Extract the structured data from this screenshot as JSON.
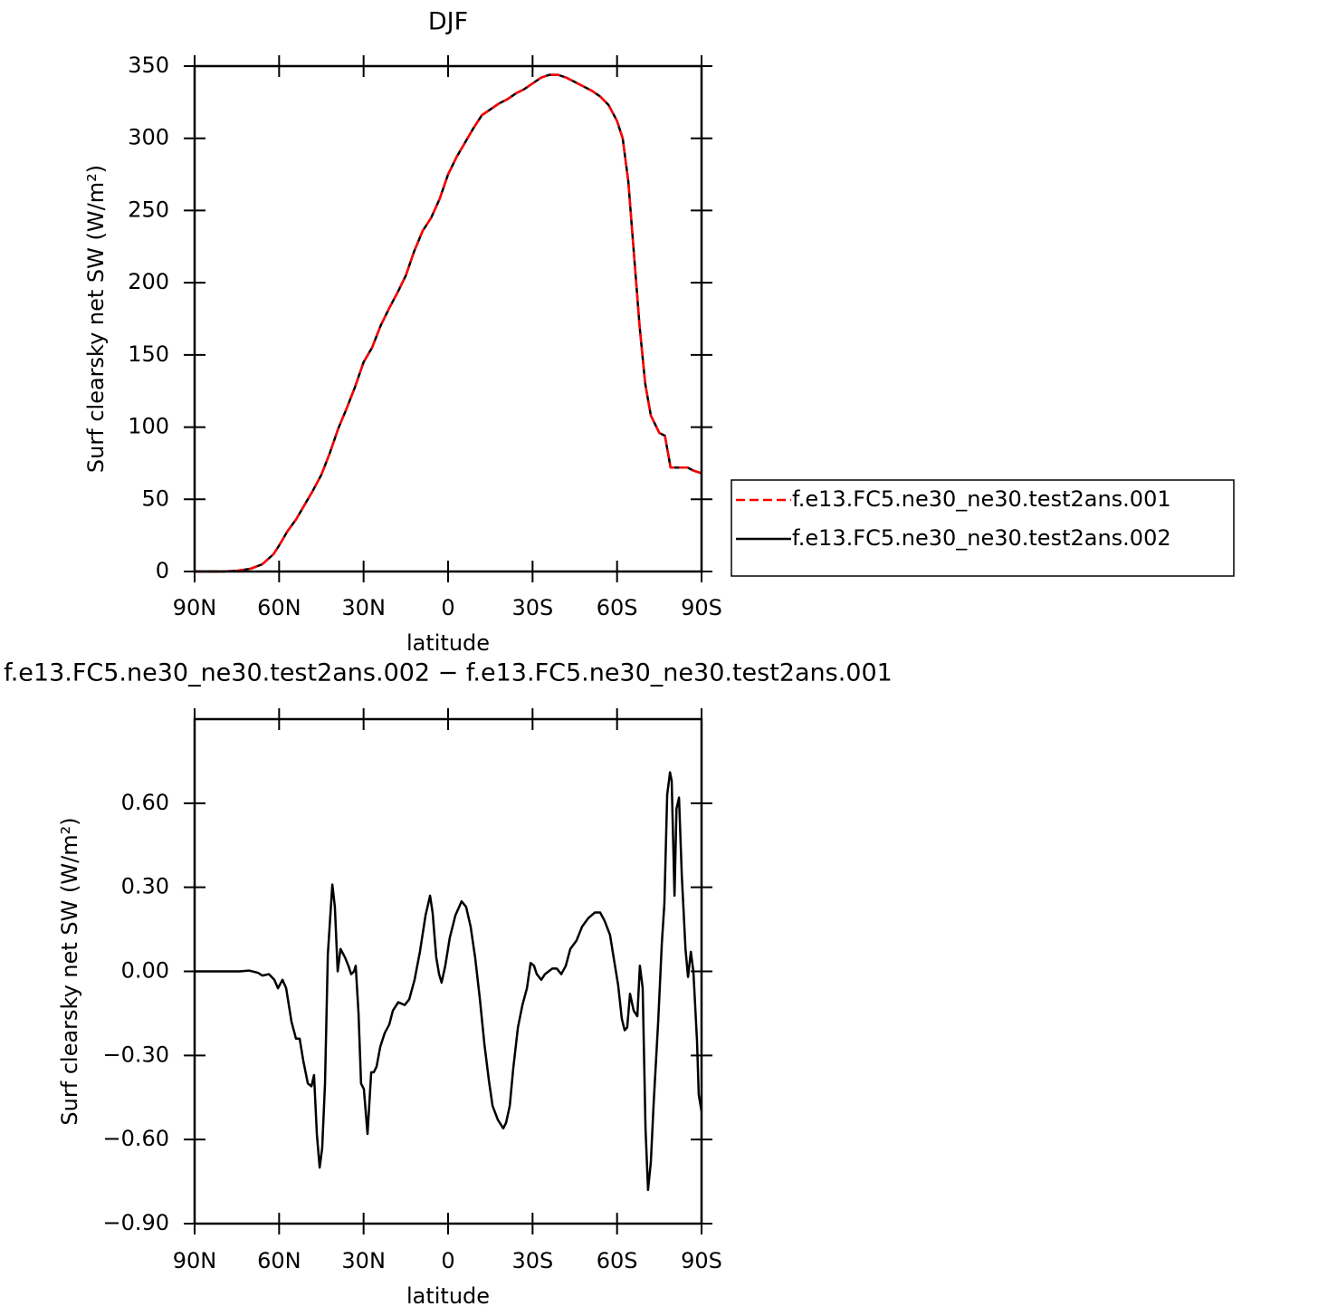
{
  "chart_data": [
    {
      "type": "line",
      "title": "DJF",
      "x_label": "latitude",
      "y_label": "Surf clearsky net SW (W/m²)",
      "xlim": [
        90,
        -90
      ],
      "xticks": [
        {
          "value": 90,
          "label": "90N"
        },
        {
          "value": 60,
          "label": "60N"
        },
        {
          "value": 30,
          "label": "30N"
        },
        0,
        {
          "value": -30,
          "label": "30S"
        },
        {
          "value": -60,
          "label": "60S"
        },
        {
          "value": -90,
          "label": "90S"
        }
      ],
      "ylim": [
        0,
        350
      ],
      "yticks": [
        0,
        50,
        100,
        150,
        200,
        250,
        300,
        350
      ],
      "legend": "outside-right",
      "x": [
        90,
        85,
        80,
        75,
        70,
        66,
        62,
        60,
        57,
        54,
        51,
        48,
        45,
        42,
        39,
        36,
        33,
        30,
        27,
        24,
        21,
        18,
        15,
        12,
        9,
        6,
        3,
        0,
        -3,
        -6,
        -9,
        -12,
        -15,
        -18,
        -21,
        -24,
        -27,
        -30,
        -33,
        -36,
        -39,
        -42,
        -45,
        -48,
        -51,
        -54,
        -57,
        -60,
        -62,
        -64,
        -66,
        -68,
        -70,
        -72,
        -74,
        -75,
        -77,
        -79,
        -81,
        -83,
        -85,
        -87,
        -90
      ],
      "series": [
        {
          "name": "f.e13.FC5.ne30_ne30.test2ans.001",
          "color": "#ff0000",
          "dashed": true,
          "values": [
            0,
            0,
            0,
            0.5,
            2,
            5,
            12,
            18,
            28,
            36,
            46,
            56,
            67,
            82,
            99,
            113,
            128,
            145,
            155,
            170,
            182,
            193,
            205,
            222,
            236,
            245,
            258,
            275,
            287,
            297,
            307,
            316,
            320,
            324,
            327,
            331,
            334,
            338,
            342,
            344,
            344,
            342,
            339,
            336,
            333,
            329,
            323,
            312,
            300,
            270,
            220,
            170,
            130,
            108,
            100,
            96,
            94,
            72,
            72,
            72,
            72,
            70,
            68
          ]
        },
        {
          "name": "f.e13.FC5.ne30_ne30.test2ans.002",
          "color": "#000000",
          "dashed": false,
          "values": [
            0,
            0,
            0,
            0.5,
            2,
            5,
            12,
            18,
            28,
            36,
            46,
            56,
            67,
            82,
            99,
            113,
            128,
            145,
            155,
            170,
            182,
            193,
            205,
            222,
            236,
            245,
            258,
            275,
            287,
            297,
            307,
            316,
            320,
            324,
            327,
            331,
            334,
            338,
            342,
            344,
            344,
            342,
            339,
            336,
            333,
            329,
            323,
            312,
            300,
            270,
            220,
            170,
            130,
            108,
            100,
            96,
            94,
            72,
            72,
            72,
            72,
            70,
            68
          ]
        }
      ]
    },
    {
      "type": "line",
      "title": "f.e13.FC5.ne30_ne30.test2ans.002 − f.e13.FC5.ne30_ne30.test2ans.001",
      "x_label": "latitude",
      "y_label": "Surf clearsky net SW (W/m²)",
      "xlim": [
        90,
        -90
      ],
      "xticks": [
        {
          "value": 90,
          "label": "90N"
        },
        {
          "value": 60,
          "label": "60N"
        },
        {
          "value": 30,
          "label": "30N"
        },
        0,
        {
          "value": -30,
          "label": "30S"
        },
        {
          "value": -60,
          "label": "60S"
        },
        {
          "value": -90,
          "label": "90S"
        }
      ],
      "ylim": [
        -0.9,
        0.9
      ],
      "yticks": [
        {
          "value": -0.9,
          "label": "−0.90"
        },
        {
          "value": -0.6,
          "label": "−0.60"
        },
        {
          "value": -0.3,
          "label": "−0.30"
        },
        {
          "value": 0,
          "label": "0.00"
        },
        {
          "value": 0.3,
          "label": "0.30"
        },
        {
          "value": 0.6,
          "label": "0.60"
        }
      ],
      "color": "#000000",
      "x": [
        90,
        75.5,
        74,
        70.7,
        67.5,
        65.9,
        63.6,
        61.7,
        60.4,
        58.8,
        57.5,
        55.6,
        54,
        52.7,
        51.4,
        49.8,
        48.5,
        47.6,
        46.6,
        45.6,
        44.7,
        43.7,
        42.7,
        41.1,
        40.2,
        39.2,
        38.2,
        36.6,
        35.4,
        34.4,
        33.4,
        32.8,
        31.8,
        30.9,
        29.9,
        28.6,
        27.3,
        26.4,
        25.4,
        24.1,
        22.5,
        20.9,
        19.6,
        17.7,
        15.4,
        13.8,
        11.9,
        10,
        8,
        6.4,
        5.5,
        4.2,
        3.2,
        2.3,
        1,
        -0.6,
        -2.6,
        -4.8,
        -6.4,
        -8,
        -9.6,
        -11.3,
        -12.9,
        -14.5,
        -15.8,
        -17.7,
        -19.6,
        -20.6,
        -21.9,
        -23.1,
        -24.8,
        -26.4,
        -28,
        -29.3,
        -30.5,
        -31.5,
        -33.1,
        -34.4,
        -37,
        -38.6,
        -40.2,
        -41.8,
        -43.4,
        -45.6,
        -47.6,
        -49.8,
        -52.1,
        -54,
        -55.6,
        -57.5,
        -59.1,
        -60.4,
        -61.7,
        -62.7,
        -63.6,
        -64.6,
        -65.9,
        -67.2,
        -68.1,
        -69.1,
        -70.1,
        -71,
        -72,
        -73,
        -74.6,
        -75.9,
        -76.8,
        -77.8,
        -78.8,
        -79.4,
        -80.4,
        -81.1,
        -82,
        -83,
        -84.3,
        -85.2,
        -86.2,
        -87.1,
        -88.4,
        -89,
        -90
      ],
      "values": [
        0,
        0,
        0,
        0.003,
        -0.005,
        -0.015,
        -0.01,
        -0.03,
        -0.06,
        -0.03,
        -0.06,
        -0.18,
        -0.24,
        -0.24,
        -0.32,
        -0.4,
        -0.41,
        -0.37,
        -0.58,
        -0.7,
        -0.63,
        -0.4,
        0.06,
        0.31,
        0.23,
        0.0,
        0.08,
        0.05,
        0.02,
        -0.01,
        0.0,
        0.02,
        -0.15,
        -0.4,
        -0.42,
        -0.58,
        -0.36,
        -0.36,
        -0.34,
        -0.27,
        -0.22,
        -0.19,
        -0.14,
        -0.11,
        -0.12,
        -0.1,
        -0.03,
        0.07,
        0.2,
        0.27,
        0.21,
        0.05,
        -0.01,
        -0.04,
        0.02,
        0.12,
        0.2,
        0.25,
        0.23,
        0.16,
        0.05,
        -0.1,
        -0.26,
        -0.39,
        -0.48,
        -0.53,
        -0.56,
        -0.54,
        -0.48,
        -0.35,
        -0.2,
        -0.12,
        -0.06,
        0.03,
        0.02,
        -0.01,
        -0.03,
        -0.01,
        0.01,
        0.01,
        -0.01,
        0.02,
        0.08,
        0.11,
        0.16,
        0.19,
        0.21,
        0.21,
        0.18,
        0.13,
        0.03,
        -0.05,
        -0.17,
        -0.21,
        -0.2,
        -0.08,
        -0.14,
        -0.16,
        0.02,
        -0.06,
        -0.56,
        -0.78,
        -0.68,
        -0.47,
        -0.18,
        0.1,
        0.24,
        0.63,
        0.71,
        0.68,
        0.27,
        0.58,
        0.62,
        0.34,
        0.08,
        -0.02,
        0.07,
        0.0,
        -0.25,
        -0.44,
        -0.5
      ]
    }
  ]
}
